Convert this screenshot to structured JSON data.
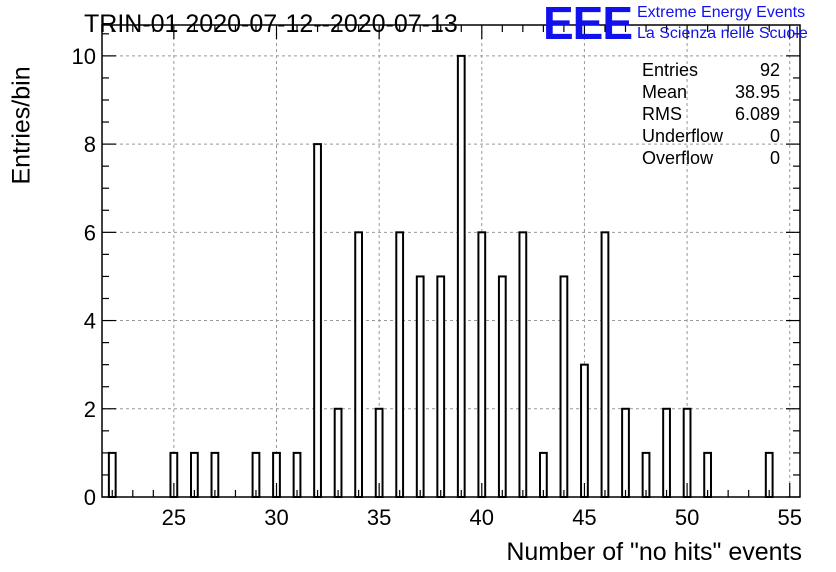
{
  "title": "TRIN-01 2020-07-12--2020-07-13",
  "logo": {
    "mark": "EEE",
    "line1": "Extreme Energy Events",
    "line2": "La Scienza nelle Scuole",
    "color": "#1111ee"
  },
  "stats": [
    {
      "label": "Entries",
      "value": "92"
    },
    {
      "label": "Mean",
      "value": "38.95"
    },
    {
      "label": "RMS",
      "value": "6.089"
    },
    {
      "label": "Underflow",
      "value": "0"
    },
    {
      "label": "Overflow",
      "value": "0"
    }
  ],
  "chart_data": {
    "type": "bar",
    "title": "TRIN-01 2020-07-12--2020-07-13",
    "xlabel": "Number of \"no hits\" events",
    "ylabel": "Entries/bin",
    "xlim": [
      21.5,
      55.5
    ],
    "ylim": [
      0,
      10.7
    ],
    "xticks": [
      25,
      30,
      35,
      40,
      45,
      50,
      55
    ],
    "yticks": [
      0,
      2,
      4,
      6,
      8,
      10
    ],
    "grid": true,
    "bin_width": 0.33,
    "x": [
      22,
      25,
      26,
      27,
      29,
      30,
      31,
      32,
      33,
      34,
      35,
      36,
      37,
      38,
      39,
      40,
      41,
      42,
      43,
      44,
      45,
      46,
      47,
      48,
      49,
      50,
      51,
      54
    ],
    "values": [
      1,
      1,
      1,
      1,
      1,
      1,
      1,
      8,
      2,
      6,
      2,
      6,
      5,
      5,
      10,
      6,
      5,
      6,
      1,
      5,
      3,
      6,
      2,
      1,
      2,
      2,
      1,
      1
    ]
  }
}
